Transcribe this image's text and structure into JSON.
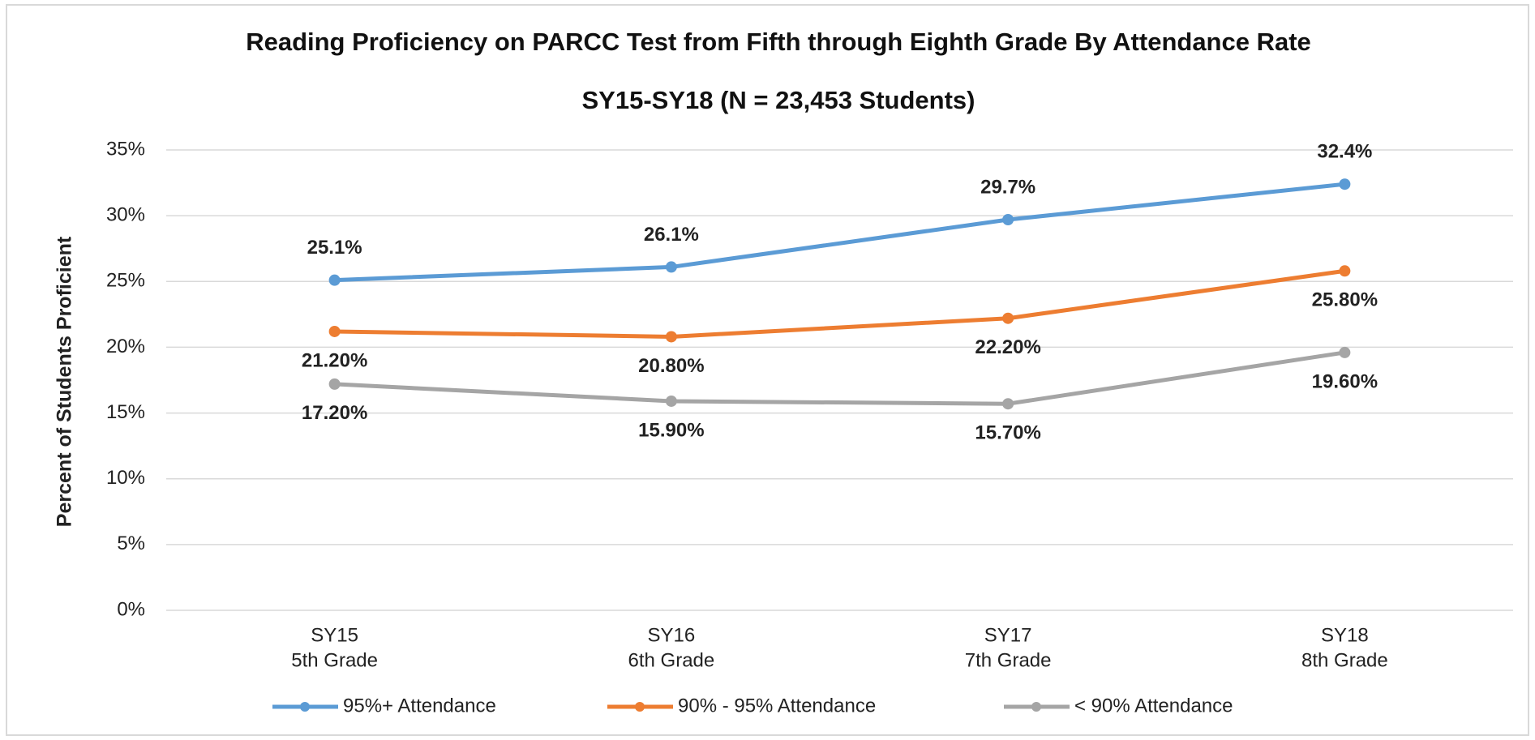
{
  "chart_data": {
    "type": "line",
    "title": "Reading Proficiency on PARCC Test from Fifth through Eighth Grade By Attendance Rate",
    "subtitle": "SY15-SY18 (N = 23,453 Students)",
    "y_label": "Percent of Students Proficient",
    "categories": [
      [
        "SY15",
        "5th Grade"
      ],
      [
        "SY16",
        "6th Grade"
      ],
      [
        "SY17",
        "7th Grade"
      ],
      [
        "SY18",
        "8th Grade"
      ]
    ],
    "series": [
      {
        "name": "95%+ Attendance",
        "color": "#5b9bd5",
        "values": [
          25.1,
          26.1,
          29.7,
          32.4
        ],
        "value_labels": [
          "25.1%",
          "26.1%",
          "29.7%",
          "32.4%"
        ],
        "label_position": "above"
      },
      {
        "name": "90% - 95% Attendance",
        "color": "#ed7d31",
        "values": [
          21.2,
          20.8,
          22.2,
          25.8
        ],
        "value_labels": [
          "21.20%",
          "20.80%",
          "22.20%",
          "25.80%"
        ],
        "label_position": "below"
      },
      {
        "name": "< 90% Attendance",
        "color": "#a5a5a5",
        "values": [
          17.2,
          15.9,
          15.7,
          19.6
        ],
        "value_labels": [
          "17.20%",
          "15.90%",
          "15.70%",
          "19.60%"
        ],
        "label_position": "below"
      }
    ],
    "ylim": [
      0,
      35
    ],
    "yticks": [
      {
        "value": 0,
        "label": "0%"
      },
      {
        "value": 5,
        "label": "5%"
      },
      {
        "value": 10,
        "label": "10%"
      },
      {
        "value": 15,
        "label": "15%"
      },
      {
        "value": 20,
        "label": "20%"
      },
      {
        "value": 25,
        "label": "25%"
      },
      {
        "value": 30,
        "label": "30%"
      },
      {
        "value": 35,
        "label": "35%"
      }
    ],
    "grid": true,
    "legend": "bottom"
  }
}
